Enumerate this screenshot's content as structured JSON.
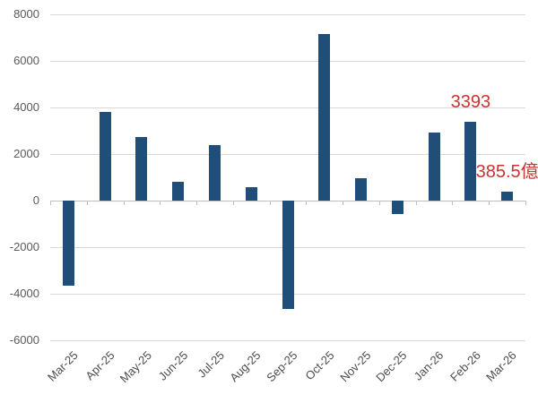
{
  "chart_data": {
    "type": "bar",
    "title": "",
    "xlabel": "",
    "ylabel": "",
    "categories": [
      "Mar-25",
      "Apr-25",
      "May-25",
      "Jun-25",
      "Jul-25",
      "Aug-25",
      "Sep-25",
      "Oct-25",
      "Nov-25",
      "Dec-25",
      "Jan-26",
      "Feb-26",
      "Mar-26"
    ],
    "values": [
      -3670,
      3800,
      2750,
      800,
      2400,
      560,
      -4650,
      7150,
      960,
      -580,
      2920,
      3393,
      385.5
    ],
    "ylim": [
      -6000,
      8000
    ],
    "yticks": [
      8000,
      6000,
      4000,
      2000,
      0,
      -2000,
      -4000,
      -6000
    ],
    "grid": true,
    "legend": false,
    "annotations": [
      {
        "category": "Feb-26",
        "text": "3393"
      },
      {
        "category": "Mar-26",
        "text": "385.5億"
      }
    ],
    "colors": {
      "bar": "#1F4E79",
      "annotation_text": "#C83531",
      "gridline": "#D9D9D9",
      "axis_line": "#BFBFBF",
      "y_axis_text": "#595959",
      "x_axis_text": "#4d4d4d",
      "background": "#ffffff"
    }
  }
}
